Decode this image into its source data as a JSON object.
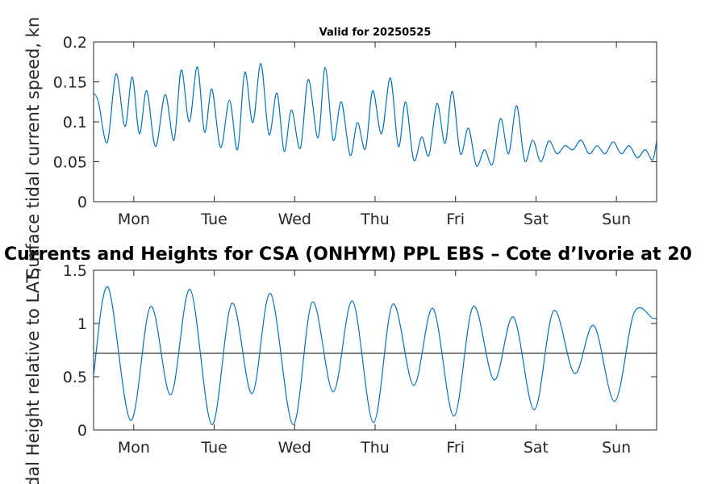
{
  "chart_data": [
    {
      "type": "line",
      "title": "Valid for 20250525",
      "ylabel": "Surface tidal current speed, kn",
      "xlabel": "",
      "ylim": [
        0,
        0.2
      ],
      "yticks": [
        0,
        0.05,
        0.1,
        0.15,
        0.2
      ],
      "ytick_labels": [
        "0",
        "0.05",
        "0.1",
        "0.15",
        "0.2"
      ],
      "x_range_days": [
        0,
        7
      ],
      "xtick_positions_days": [
        0.5,
        1.5,
        2.5,
        3.5,
        4.5,
        5.5,
        6.5
      ],
      "xtick_labels": [
        "Mon",
        "Tue",
        "Wed",
        "Thu",
        "Fri",
        "Sat",
        "Sun"
      ],
      "grid": false,
      "color": "#0072BD",
      "series": [
        {
          "x_days": [
            0.0,
            0.06,
            0.17,
            0.28,
            0.39,
            0.48,
            0.57,
            0.66,
            0.77,
            0.89,
            1.0,
            1.09,
            1.19,
            1.29,
            1.38,
            1.47,
            1.58,
            1.69,
            1.79,
            1.88,
            1.98,
            2.08,
            2.18,
            2.28,
            2.37,
            2.46,
            2.57,
            2.67,
            2.79,
            2.88,
            2.98,
            3.08,
            3.19,
            3.28,
            3.38,
            3.47,
            3.58,
            3.69,
            3.79,
            3.88,
            3.98,
            4.08,
            4.17,
            4.27,
            4.37,
            4.46,
            4.56,
            4.66,
            4.76,
            4.86,
            4.96,
            5.06,
            5.16,
            5.26,
            5.36,
            5.46,
            5.56,
            5.66,
            5.76,
            5.86,
            5.96,
            6.06,
            6.16,
            6.26,
            6.36,
            6.46,
            6.56,
            6.66,
            6.76,
            6.86,
            6.95,
            7.0
          ],
          "y": [
            0.136,
            0.125,
            0.074,
            0.16,
            0.094,
            0.156,
            0.085,
            0.139,
            0.069,
            0.134,
            0.077,
            0.165,
            0.1,
            0.169,
            0.087,
            0.141,
            0.068,
            0.127,
            0.065,
            0.162,
            0.099,
            0.173,
            0.084,
            0.136,
            0.063,
            0.115,
            0.067,
            0.153,
            0.08,
            0.168,
            0.077,
            0.125,
            0.058,
            0.099,
            0.066,
            0.139,
            0.085,
            0.155,
            0.069,
            0.125,
            0.052,
            0.081,
            0.058,
            0.123,
            0.073,
            0.138,
            0.06,
            0.092,
            0.045,
            0.065,
            0.047,
            0.104,
            0.06,
            0.12,
            0.051,
            0.077,
            0.05,
            0.076,
            0.06,
            0.07,
            0.065,
            0.077,
            0.06,
            0.07,
            0.06,
            0.075,
            0.06,
            0.07,
            0.055,
            0.065,
            0.052,
            0.077
          ]
        }
      ]
    },
    {
      "type": "line",
      "title": "Currents and Heights for CSA (ONHYM) PPL EBS  – Cote d’Ivorie at 20",
      "ylabel": "Tidal Height relative to LAT, m",
      "xlabel": "",
      "ylim": [
        0,
        1.5
      ],
      "yticks": [
        0,
        0.5,
        1,
        1.5
      ],
      "ytick_labels": [
        "0",
        "0.5",
        "1",
        "1.5"
      ],
      "x_range_days": [
        0,
        7
      ],
      "xtick_positions_days": [
        0.5,
        1.5,
        2.5,
        3.5,
        4.5,
        5.5,
        6.5
      ],
      "xtick_labels": [
        "Mon",
        "Tue",
        "Wed",
        "Thu",
        "Fri",
        "Sat",
        "Sun"
      ],
      "grid": false,
      "reference_line_y": 0.72,
      "color": "#0072BD",
      "series": [
        {
          "x_days": [
            0.0,
            0.18,
            0.46,
            0.71,
            0.96,
            1.2,
            1.47,
            1.72,
            1.97,
            2.2,
            2.48,
            2.72,
            2.98,
            3.22,
            3.48,
            3.72,
            3.98,
            4.22,
            4.48,
            4.72,
            4.98,
            5.22,
            5.48,
            5.72,
            5.98,
            6.22,
            6.48,
            6.72,
            6.95,
            7.0
          ],
          "y": [
            0.52,
            1.34,
            0.09,
            1.16,
            0.33,
            1.32,
            0.05,
            1.19,
            0.34,
            1.28,
            0.05,
            1.2,
            0.36,
            1.21,
            0.07,
            1.18,
            0.42,
            1.14,
            0.13,
            1.16,
            0.47,
            1.06,
            0.19,
            1.12,
            0.53,
            0.98,
            0.27,
            1.1,
            1.05,
            1.05
          ]
        }
      ]
    }
  ]
}
